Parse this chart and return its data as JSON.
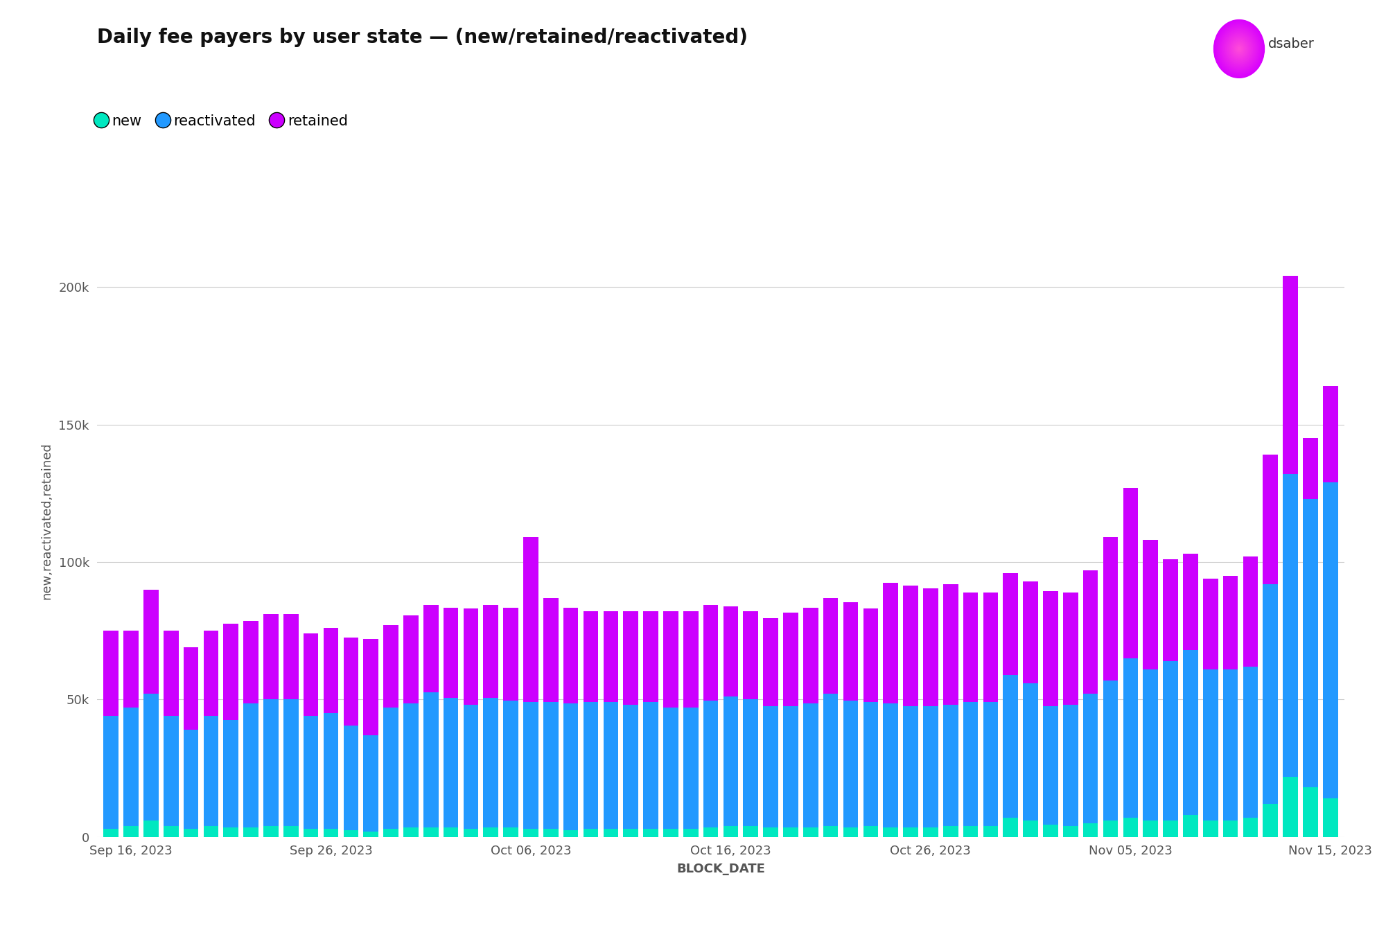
{
  "title": "Daily fee payers by user state — (new/retained/reactivated)",
  "xlabel": "BLOCK_DATE",
  "ylabel": "new,reactivated,retained",
  "colors": {
    "new": "#00E8C0",
    "reactivated": "#2299FF",
    "retained": "#CC00FF"
  },
  "new": [
    3000,
    4000,
    6000,
    4000,
    3000,
    4000,
    3500,
    3500,
    4000,
    4000,
    3000,
    3000,
    2500,
    2000,
    3000,
    3500,
    3500,
    3500,
    3000,
    3500,
    3500,
    3000,
    3000,
    2500,
    3000,
    3000,
    3000,
    3000,
    3000,
    3000,
    3500,
    4000,
    4000,
    3500,
    3500,
    3500,
    4000,
    3500,
    4000,
    3500,
    3500,
    3500,
    4000,
    4000,
    4000,
    7000,
    6000,
    4500,
    4000,
    5000,
    6000,
    7000,
    6000,
    6000,
    8000,
    6000,
    6000,
    7000,
    12000,
    22000,
    18000,
    14000
  ],
  "reactivated": [
    41000,
    43000,
    46000,
    40000,
    36000,
    40000,
    39000,
    45000,
    46000,
    46000,
    41000,
    42000,
    38000,
    35000,
    44000,
    45000,
    49000,
    47000,
    45000,
    47000,
    46000,
    46000,
    46000,
    46000,
    46000,
    46000,
    45000,
    46000,
    44000,
    44000,
    46000,
    47000,
    46000,
    44000,
    44000,
    45000,
    48000,
    46000,
    45000,
    45000,
    44000,
    44000,
    44000,
    45000,
    45000,
    52000,
    50000,
    43000,
    44000,
    47000,
    51000,
    58000,
    55000,
    58000,
    60000,
    55000,
    55000,
    55000,
    80000,
    110000,
    105000,
    115000
  ],
  "retained": [
    31000,
    28000,
    38000,
    31000,
    30000,
    31000,
    35000,
    30000,
    31000,
    31000,
    30000,
    31000,
    32000,
    35000,
    30000,
    32000,
    32000,
    33000,
    35000,
    34000,
    34000,
    60000,
    38000,
    35000,
    33000,
    33000,
    34000,
    33000,
    35000,
    35000,
    35000,
    33000,
    32000,
    32000,
    34000,
    35000,
    35000,
    36000,
    34000,
    44000,
    44000,
    43000,
    44000,
    40000,
    40000,
    37000,
    37000,
    42000,
    41000,
    45000,
    52000,
    62000,
    47000,
    37000,
    35000,
    33000,
    34000,
    40000,
    47000,
    72000,
    22000,
    35000
  ],
  "xtick_positions": [
    1,
    11,
    21,
    31,
    41,
    51,
    61
  ],
  "xtick_labels": [
    "Sep 16, 2023",
    "Sep 26, 2023",
    "Oct 06, 2023",
    "Oct 16, 2023",
    "Oct 26, 2023",
    "Nov 05, 2023",
    "Nov 15, 2023"
  ],
  "ylim": [
    0,
    230000
  ],
  "yticks": [
    0,
    50000,
    100000,
    150000,
    200000
  ],
  "ytick_labels": [
    "0",
    "50k",
    "100k",
    "150k",
    "200k"
  ],
  "background_color": "#ffffff",
  "grid_color": "#cccccc",
  "bar_width": 0.75,
  "title_fontsize": 20,
  "axis_label_fontsize": 13,
  "tick_fontsize": 13,
  "legend_fontsize": 15
}
